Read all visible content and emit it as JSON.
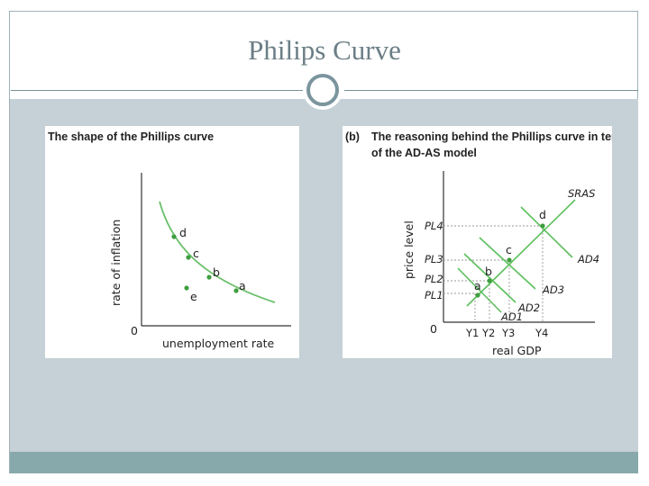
{
  "slide": {
    "title": "Philips Curve"
  },
  "panel_a": {
    "title": "The shape of the Phillips curve",
    "ylabel": "rate of inflation",
    "xlabel": "unemployment rate",
    "origin": "0",
    "points": {
      "d": "d",
      "c": "c",
      "b": "b",
      "a": "a",
      "e": "e"
    },
    "colors": {
      "curve": "#6abf6a",
      "point": "#3f9e3f"
    }
  },
  "panel_b": {
    "tag": "(b)",
    "title_line1": "The reasoning behind the Phillips curve in terms",
    "title_line2": "of the AD-AS model",
    "ylabel": "price level",
    "xlabel": "real GDP",
    "origin": "0",
    "sras_label": "SRAS",
    "ad_labels": [
      "AD1",
      "AD2",
      "AD3",
      "AD4"
    ],
    "price_levels": [
      "PL4",
      "PL3",
      "PL2",
      "PL1"
    ],
    "outputs": [
      "Y1",
      "Y2",
      "Y3",
      "Y4"
    ],
    "points": {
      "a": "a",
      "b": "b",
      "c": "c",
      "d": "d"
    },
    "colors": {
      "lines": "#5cbf5c",
      "point": "#3f9e3f",
      "dashed": "#9a9a9a"
    }
  }
}
